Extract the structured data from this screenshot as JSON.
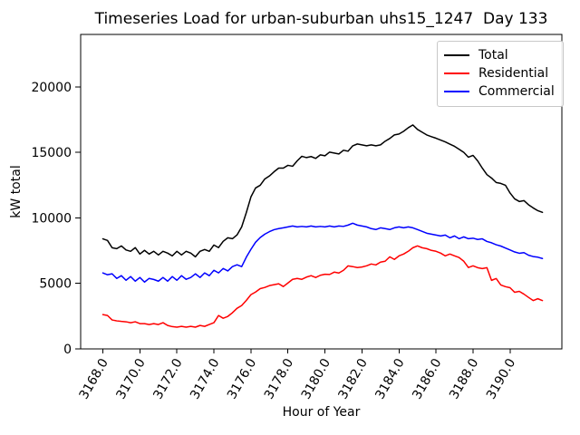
{
  "chart_data": {
    "type": "line",
    "title": "Timeseries Load for urban-suburban uhs15_1247  Day 133",
    "xlabel": "Hour of Year",
    "ylabel": "kW total",
    "grid": false,
    "legend_position": "upper right",
    "xlim": [
      3166.8,
      3192.8
    ],
    "ylim": [
      0,
      24000
    ],
    "xtick_rotation_deg": 60,
    "xticks": {
      "values": [
        3168,
        3170,
        3172,
        3174,
        3176,
        3178,
        3180,
        3182,
        3184,
        3186,
        3188,
        3190
      ],
      "labels": [
        "3168.0",
        "3170.0",
        "3172.0",
        "3174.0",
        "3176.0",
        "3178.0",
        "3180.0",
        "3182.0",
        "3184.0",
        "3186.0",
        "3188.0",
        "3190.0"
      ]
    },
    "yticks": {
      "values": [
        0,
        5000,
        10000,
        15000,
        20000
      ],
      "labels": [
        "0",
        "5000",
        "10000",
        "15000",
        "20000"
      ]
    },
    "x_start": 3168.0,
    "x_step": 0.25,
    "series": [
      {
        "name": "Total",
        "color": "#000000",
        "values": [
          8400,
          8280,
          7720,
          7650,
          7860,
          7550,
          7450,
          7730,
          7240,
          7520,
          7240,
          7450,
          7170,
          7450,
          7310,
          7100,
          7450,
          7170,
          7450,
          7310,
          7030,
          7450,
          7590,
          7450,
          7930,
          7730,
          8210,
          8480,
          8410,
          8700,
          9310,
          10400,
          11600,
          12280,
          12490,
          12970,
          13200,
          13520,
          13800,
          13800,
          14010,
          13940,
          14350,
          14700,
          14600,
          14680,
          14540,
          14810,
          14740,
          15020,
          14950,
          14880,
          15160,
          15090,
          15500,
          15640,
          15570,
          15500,
          15570,
          15500,
          15570,
          15850,
          16060,
          16330,
          16400,
          16610,
          16880,
          17090,
          16750,
          16540,
          16330,
          16200,
          16080,
          15940,
          15800,
          15630,
          15460,
          15230,
          15000,
          14630,
          14770,
          14350,
          13800,
          13300,
          13040,
          12700,
          12630,
          12490,
          11900,
          11450,
          11250,
          11320,
          11000,
          10760,
          10550,
          10420
        ]
      },
      {
        "name": "Residential",
        "color": "#ff0000",
        "values": [
          2620,
          2550,
          2210,
          2140,
          2100,
          2070,
          2000,
          2070,
          1930,
          1930,
          1860,
          1930,
          1860,
          2000,
          1790,
          1700,
          1660,
          1720,
          1660,
          1720,
          1660,
          1790,
          1720,
          1860,
          2000,
          2550,
          2340,
          2480,
          2760,
          3100,
          3310,
          3700,
          4140,
          4340,
          4600,
          4690,
          4830,
          4900,
          4970,
          4760,
          5030,
          5310,
          5380,
          5310,
          5480,
          5590,
          5450,
          5620,
          5700,
          5680,
          5860,
          5790,
          6000,
          6340,
          6280,
          6210,
          6250,
          6340,
          6480,
          6410,
          6620,
          6690,
          7030,
          6830,
          7100,
          7240,
          7450,
          7720,
          7860,
          7720,
          7650,
          7520,
          7450,
          7310,
          7100,
          7240,
          7100,
          6970,
          6690,
          6210,
          6340,
          6200,
          6130,
          6200,
          5230,
          5370,
          4880,
          4750,
          4670,
          4320,
          4390,
          4180,
          3930,
          3690,
          3830,
          3690
        ]
      },
      {
        "name": "Commercial",
        "color": "#0000ff",
        "values": [
          5800,
          5660,
          5730,
          5380,
          5590,
          5240,
          5520,
          5170,
          5450,
          5100,
          5380,
          5300,
          5170,
          5450,
          5170,
          5520,
          5240,
          5590,
          5310,
          5450,
          5730,
          5450,
          5800,
          5590,
          6000,
          5800,
          6140,
          5950,
          6280,
          6420,
          6280,
          7000,
          7600,
          8140,
          8500,
          8760,
          8950,
          9100,
          9180,
          9240,
          9310,
          9380,
          9310,
          9350,
          9310,
          9380,
          9310,
          9350,
          9310,
          9380,
          9310,
          9380,
          9350,
          9450,
          9590,
          9450,
          9380,
          9310,
          9180,
          9110,
          9240,
          9180,
          9110,
          9240,
          9310,
          9240,
          9310,
          9240,
          9110,
          8970,
          8830,
          8760,
          8690,
          8620,
          8690,
          8480,
          8620,
          8410,
          8550,
          8410,
          8450,
          8350,
          8400,
          8200,
          8100,
          7950,
          7850,
          7700,
          7550,
          7400,
          7300,
          7350,
          7150,
          7050,
          7000,
          6900
        ]
      }
    ]
  }
}
